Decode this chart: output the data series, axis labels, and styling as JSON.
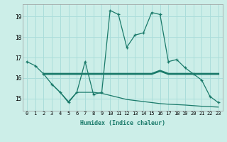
{
  "xlabel": "Humidex (Indice chaleur)",
  "background_color": "#cceee8",
  "grid_color": "#aaddda",
  "line_color": "#1a7a6a",
  "x_ticks": [
    0,
    1,
    2,
    3,
    4,
    5,
    6,
    7,
    8,
    9,
    10,
    11,
    12,
    13,
    14,
    15,
    16,
    17,
    18,
    19,
    20,
    21,
    22,
    23
  ],
  "ylim": [
    14.4,
    19.6
  ],
  "yticks": [
    15,
    16,
    17,
    18,
    19
  ],
  "series": [
    {
      "x": [
        0,
        1,
        2,
        3,
        4,
        5,
        6,
        7,
        8,
        9,
        10,
        11,
        12,
        13,
        14,
        15,
        16,
        17,
        18,
        19,
        20,
        21,
        22,
        23
      ],
      "y": [
        16.8,
        16.6,
        16.2,
        15.7,
        15.3,
        14.8,
        15.3,
        16.8,
        15.2,
        15.3,
        19.3,
        19.1,
        17.5,
        18.1,
        18.2,
        19.2,
        19.1,
        16.8,
        16.9,
        16.5,
        16.2,
        15.9,
        15.1,
        14.8
      ]
    },
    {
      "x": [
        2,
        3,
        4,
        5,
        6,
        7,
        8,
        9,
        10,
        11,
        12,
        13,
        14,
        15,
        16,
        17,
        18,
        19,
        20,
        21,
        22,
        23
      ],
      "y": [
        16.2,
        16.2,
        16.2,
        16.2,
        16.2,
        16.2,
        16.2,
        16.2,
        16.2,
        16.2,
        16.2,
        16.2,
        16.2,
        16.2,
        16.35,
        16.2,
        16.2,
        16.2,
        16.2,
        16.2,
        16.2,
        16.2
      ]
    },
    {
      "x": [
        3,
        4,
        5,
        6,
        7,
        8,
        9,
        10,
        11,
        12,
        13,
        14,
        15,
        16,
        17,
        18,
        19,
        20,
        21,
        22,
        23
      ],
      "y": [
        15.7,
        15.3,
        14.85,
        15.3,
        15.3,
        15.3,
        15.25,
        15.15,
        15.05,
        14.95,
        14.9,
        14.85,
        14.8,
        14.75,
        14.72,
        14.7,
        14.68,
        14.65,
        14.62,
        14.6,
        14.58
      ]
    }
  ]
}
